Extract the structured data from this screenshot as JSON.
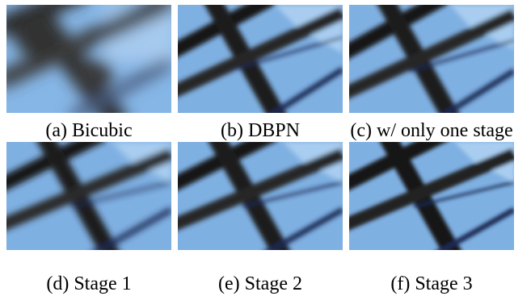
{
  "figure": {
    "panels": [
      {
        "caption": "(a) Bicubic",
        "image": "bicubic-upscaled-crop"
      },
      {
        "caption": "(b) DBPN",
        "image": "dbpn-crop"
      },
      {
        "caption": "(c) w/ only one stage",
        "image": "single-stage-crop"
      },
      {
        "caption": "(d) Stage 1",
        "image": "stage-1-crop"
      },
      {
        "caption": "(e) Stage 2",
        "image": "stage-2-crop"
      },
      {
        "caption": "(f) Stage 3",
        "image": "stage-3-crop"
      }
    ],
    "colors": {
      "sky": "#7fb0e2",
      "sky_light": "#a9cdf0",
      "beam_dark": "#141414",
      "beam_mid": "#2e2e2e",
      "thin_wire": "#1b2a52"
    }
  }
}
